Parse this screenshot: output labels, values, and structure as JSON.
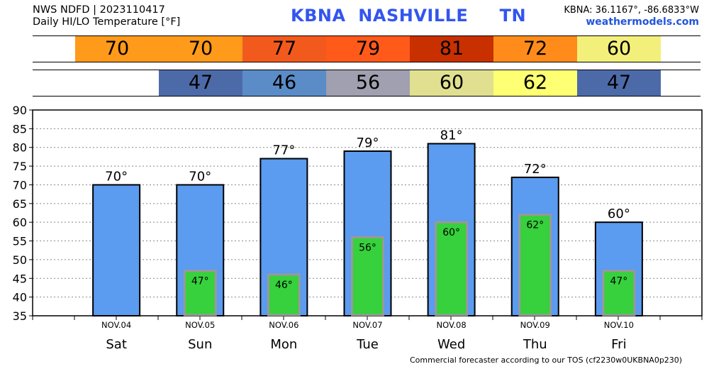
{
  "header": {
    "line1": "NWS NDFD | 2023110417",
    "line2": "Daily HI/LO Temperature [°F]",
    "station_code": "KBNA",
    "station_name": "NASHVILLE",
    "state": "TN",
    "coords": "KBNA: 36.1167°, -86.6833°W",
    "site": "weathermodels.com"
  },
  "footer": "Commercial forecaster according to our TOS (cf2230w0UKBNA0p230)",
  "colors": {
    "bar_high": "#5b9bf0",
    "bar_low": "#36d13c",
    "bar_low_border": "#999999",
    "grid": "#888888"
  },
  "strips": {
    "high": [
      {
        "value": "",
        "color": "#ffffff"
      },
      {
        "value": "70",
        "color": "#ff9a1a"
      },
      {
        "value": "70",
        "color": "#ff9a1a"
      },
      {
        "value": "77",
        "color": "#f25a1d"
      },
      {
        "value": "79",
        "color": "#ff5a1a"
      },
      {
        "value": "81",
        "color": "#c83000"
      },
      {
        "value": "72",
        "color": "#ff8c1a"
      },
      {
        "value": "60",
        "color": "#f2f07a"
      },
      {
        "value": "",
        "color": "#ffffff"
      }
    ],
    "low": [
      {
        "value": "",
        "color": "#ffffff"
      },
      {
        "value": "",
        "color": "#ffffff"
      },
      {
        "value": "47",
        "color": "#4d6aa8"
      },
      {
        "value": "46",
        "color": "#5b8cc8"
      },
      {
        "value": "56",
        "color": "#a0a0b0"
      },
      {
        "value": "60",
        "color": "#e0e090"
      },
      {
        "value": "62",
        "color": "#ffff73"
      },
      {
        "value": "47",
        "color": "#4d6aa8"
      },
      {
        "value": "",
        "color": "#ffffff"
      }
    ]
  },
  "chart_data": {
    "type": "bar",
    "categories": [
      "Sat",
      "Sun",
      "Mon",
      "Tue",
      "Wed",
      "Thu",
      "Fri"
    ],
    "dates": [
      "NOV.04",
      "NOV.05",
      "NOV.06",
      "NOV.07",
      "NOV.08",
      "NOV.09",
      "NOV.10"
    ],
    "series": [
      {
        "values": [
          70,
          70,
          77,
          79,
          81,
          72,
          60
        ],
        "labels": [
          "70°",
          "70°",
          "77°",
          "79°",
          "81°",
          "72°",
          "60°"
        ]
      },
      {
        "values": [
          null,
          47,
          46,
          56,
          60,
          62,
          47
        ],
        "labels": [
          "",
          "47°",
          "46°",
          "56°",
          "60°",
          "62°",
          "47°"
        ]
      }
    ],
    "yticks": [
      "35",
      "40",
      "45",
      "50",
      "55",
      "60",
      "65",
      "70",
      "75",
      "80",
      "85",
      "90"
    ],
    "ylim": [
      35,
      90
    ],
    "grid": true
  }
}
